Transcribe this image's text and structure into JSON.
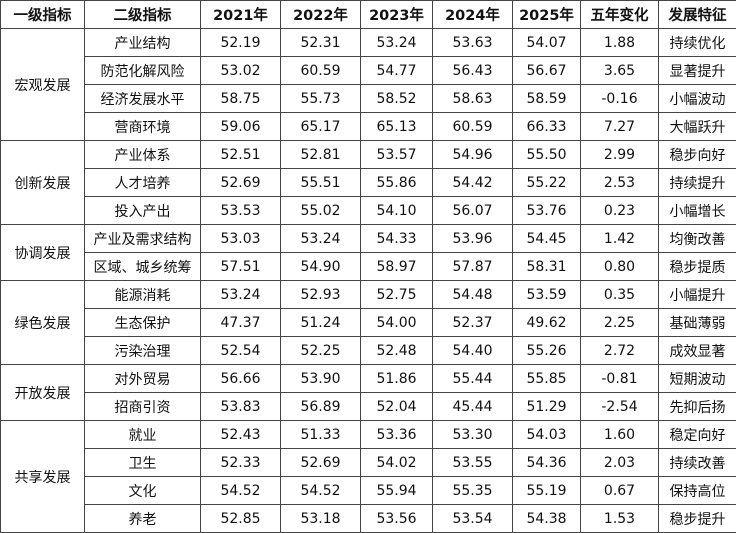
{
  "table": {
    "header": [
      "一级指标",
      "二级指标",
      "2021年",
      "2022年",
      "2023年",
      "2024年",
      "2025年",
      "五年变化",
      "发展特征"
    ],
    "groups": [
      {
        "name": "宏观发展",
        "rows": [
          [
            "产业结构",
            "52.19",
            "52.31",
            "53.24",
            "53.63",
            "54.07",
            "1.88",
            "持续优化"
          ],
          [
            "防范化解风险",
            "53.02",
            "60.59",
            "54.77",
            "56.43",
            "56.67",
            "3.65",
            "显著提升"
          ],
          [
            "经济发展水平",
            "58.75",
            "55.73",
            "58.52",
            "58.63",
            "58.59",
            "-0.16",
            "小幅波动"
          ],
          [
            "营商环境",
            "59.06",
            "65.17",
            "65.13",
            "60.59",
            "66.33",
            "7.27",
            "大幅跃升"
          ]
        ]
      },
      {
        "name": "创新发展",
        "rows": [
          [
            "产业体系",
            "52.51",
            "52.81",
            "53.57",
            "54.96",
            "55.50",
            "2.99",
            "稳步向好"
          ],
          [
            "人才培养",
            "52.69",
            "55.51",
            "55.86",
            "54.42",
            "55.22",
            "2.53",
            "持续提升"
          ],
          [
            "投入产出",
            "53.53",
            "55.02",
            "54.10",
            "56.07",
            "53.76",
            "0.23",
            "小幅增长"
          ]
        ]
      },
      {
        "name": "协调发展",
        "rows": [
          [
            "产业及需求结构",
            "53.03",
            "53.24",
            "54.33",
            "53.96",
            "54.45",
            "1.42",
            "均衡改善"
          ],
          [
            "区域、城乡统筹",
            "57.51",
            "54.90",
            "58.97",
            "57.87",
            "58.31",
            "0.80",
            "稳步提质"
          ]
        ]
      },
      {
        "name": "绿色发展",
        "rows": [
          [
            "能源消耗",
            "53.24",
            "52.93",
            "52.75",
            "54.48",
            "53.59",
            "0.35",
            "小幅提升"
          ],
          [
            "生态保护",
            "47.37",
            "51.24",
            "54.00",
            "52.37",
            "49.62",
            "2.25",
            "基础薄弱"
          ],
          [
            "污染治理",
            "52.54",
            "52.25",
            "52.48",
            "54.40",
            "55.26",
            "2.72",
            "成效显著"
          ]
        ]
      },
      {
        "name": "开放发展",
        "rows": [
          [
            "对外贸易",
            "56.66",
            "53.90",
            "51.86",
            "55.44",
            "55.85",
            "-0.81",
            "短期波动"
          ],
          [
            "招商引资",
            "53.83",
            "56.89",
            "52.04",
            "45.44",
            "51.29",
            "-2.54",
            "先抑后扬"
          ]
        ]
      },
      {
        "name": "共享发展",
        "rows": [
          [
            "就业",
            "52.43",
            "51.33",
            "53.36",
            "53.30",
            "54.03",
            "1.60",
            "稳定向好"
          ],
          [
            "卫生",
            "52.33",
            "52.69",
            "54.02",
            "53.55",
            "54.36",
            "2.03",
            "持续改善"
          ],
          [
            "文化",
            "54.52",
            "54.52",
            "55.94",
            "55.35",
            "55.19",
            "0.67",
            "保持高位"
          ],
          [
            "养老",
            "52.85",
            "53.18",
            "53.56",
            "53.54",
            "54.38",
            "1.53",
            "稳步提升"
          ]
        ]
      }
    ]
  }
}
